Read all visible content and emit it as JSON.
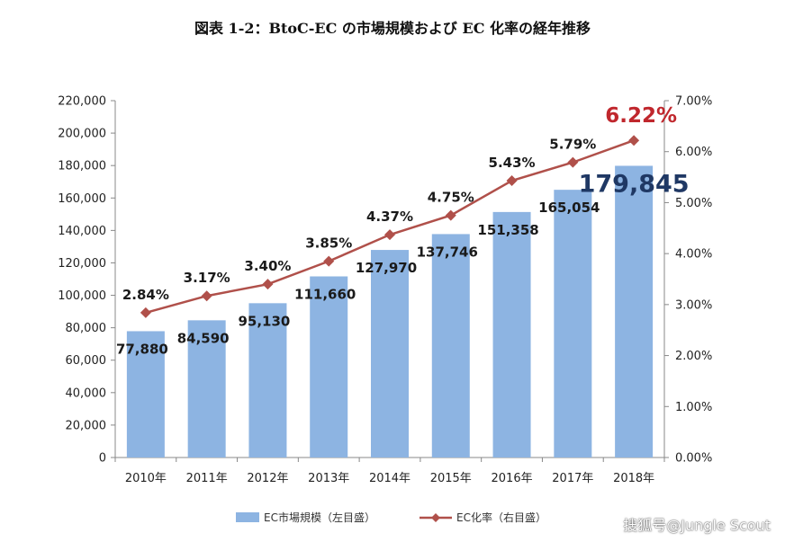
{
  "chart_data": {
    "type": "bar",
    "title": "図表 1-2：BtoC-EC の市場規模および EC 化率の経年推移",
    "categories": [
      "2010年",
      "2011年",
      "2012年",
      "2013年",
      "2014年",
      "2015年",
      "2016年",
      "2017年",
      "2018年"
    ],
    "series": [
      {
        "name": "EC市場規模（左目盛）",
        "type": "bar",
        "axis": "left",
        "values": [
          77880,
          84590,
          95130,
          111660,
          127970,
          137746,
          151358,
          165054,
          179845
        ],
        "labels": [
          "77,880",
          "84,590",
          "95,130",
          "111,660",
          "127,970",
          "137,746",
          "151,358",
          "165,054",
          "179,845"
        ],
        "color": "#8db4e2"
      },
      {
        "name": "EC化率（右目盛）",
        "type": "line",
        "axis": "right",
        "values": [
          2.84,
          3.17,
          3.4,
          3.85,
          4.37,
          4.75,
          5.43,
          5.79,
          6.22
        ],
        "labels": [
          "2.84%",
          "3.17%",
          "3.40%",
          "3.85%",
          "4.37%",
          "4.75%",
          "5.43%",
          "5.79%",
          "6.22%"
        ],
        "color": "#b0504a"
      }
    ],
    "y_left": {
      "min": 0,
      "max": 220000,
      "ticks": [
        "0",
        "20,000",
        "40,000",
        "60,000",
        "80,000",
        "100,000",
        "120,000",
        "140,000",
        "160,000",
        "180,000",
        "200,000",
        "220,000"
      ]
    },
    "y_right": {
      "min": 0,
      "max": 7,
      "ticks": [
        "0.00%",
        "1.00%",
        "2.00%",
        "3.00%",
        "4.00%",
        "5.00%",
        "6.00%",
        "7.00%"
      ]
    },
    "grid": false,
    "legend": "bottom",
    "highlight_colors": {
      "last_bar_label": "#1f3864",
      "last_rate_label": "#c0272d"
    }
  },
  "watermark": "搜狐号@Jungle Scout"
}
